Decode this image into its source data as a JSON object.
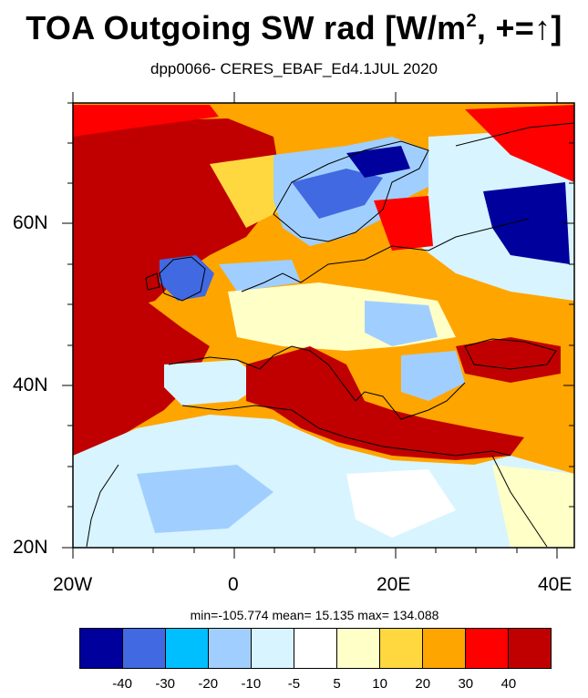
{
  "title": "TOA Outgoing SW rad [W/m",
  "title_sup": "2",
  "title_suffix": ", +=↑]",
  "subtitle": "dpp0066- CERES_EBAF_Ed4.1JUL 2020",
  "lat_labels": [
    "60N",
    "40N",
    "20N"
  ],
  "lon_labels": [
    "20W",
    "0",
    "20E",
    "40E"
  ],
  "stats_text": "min=-105.774  mean=  15.135  max= 134.088",
  "colorbar": {
    "colors": [
      "#00009c",
      "#4169e1",
      "#00bfff",
      "#a0cfff",
      "#d8f4ff",
      "#ffffff",
      "#ffffc8",
      "#ffd840",
      "#ffa500",
      "#ff0000",
      "#c00000"
    ],
    "labels": [
      "-40",
      "-30",
      "-20",
      "-10",
      "-5",
      "5",
      "10",
      "20",
      "30",
      "40"
    ]
  }
}
